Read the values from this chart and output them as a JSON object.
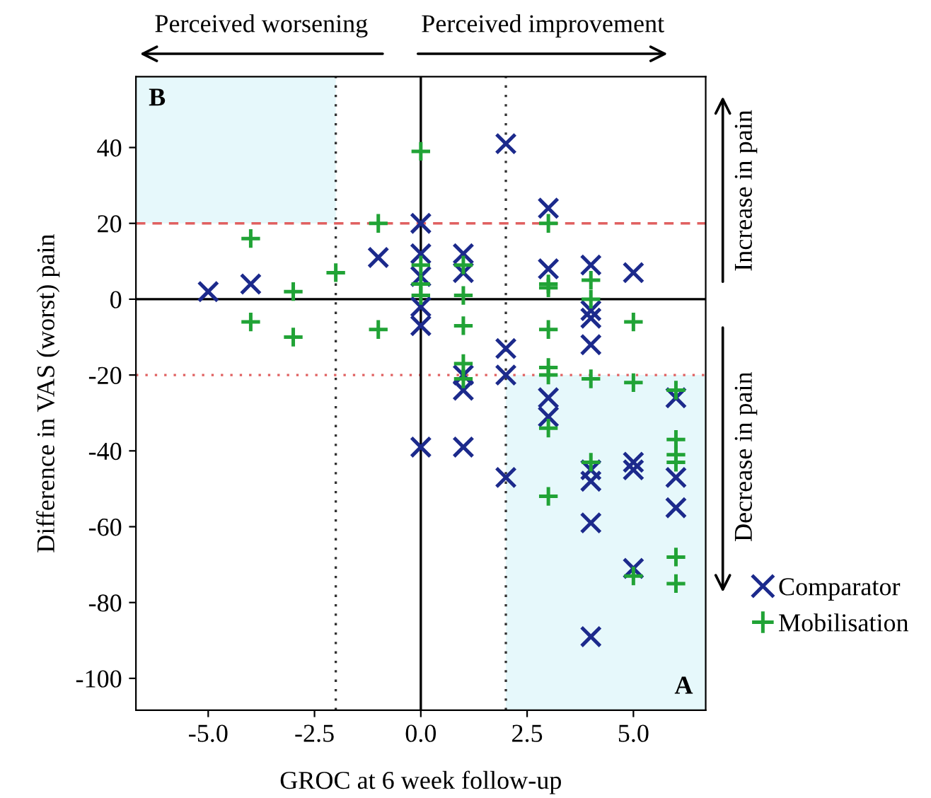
{
  "chart_data": {
    "type": "scatter",
    "xlabel": "GROC at 6 week follow-up",
    "ylabel": "Difference in VAS (worst) pain",
    "xlim": [
      -6.7,
      6.7
    ],
    "ylim": [
      -108.4,
      58.7
    ],
    "xticks": [
      {
        "value": -5,
        "label": "-5.0"
      },
      {
        "value": -2.5,
        "label": "-2.5"
      },
      {
        "value": 0,
        "label": "0.0"
      },
      {
        "value": 2.5,
        "label": "2.5"
      },
      {
        "value": 5,
        "label": "5.0"
      }
    ],
    "yticks": [
      -100,
      -80,
      -60,
      -40,
      -20,
      0,
      20,
      40
    ],
    "grid": false,
    "legend": "bottom right",
    "series": [
      {
        "name": "Comparator",
        "color": "#1c2a8c",
        "marker": "cross",
        "x": [
          -5,
          -4,
          -1,
          0,
          0,
          0,
          0,
          0,
          0,
          1,
          1,
          1,
          1,
          1,
          2,
          2,
          2,
          2,
          3,
          3,
          3,
          3,
          4,
          4,
          4,
          4,
          4,
          4,
          4,
          4,
          5,
          5,
          5,
          5,
          6,
          6,
          6
        ],
        "values": [
          2,
          4,
          11,
          20,
          12,
          6,
          -2,
          -7,
          -39,
          12,
          7,
          -20,
          -24,
          -39,
          41,
          -13,
          -20,
          -47,
          24,
          8,
          -26,
          -31,
          9,
          -3,
          -5,
          -12,
          -45,
          -48,
          -59,
          -89,
          7,
          -43,
          -45,
          -71,
          -26,
          -47,
          -55
        ]
      },
      {
        "name": "Mobilisation",
        "color": "#21a336",
        "marker": "plus",
        "x": [
          -4,
          -4,
          -3,
          -3,
          -2,
          -1,
          -1,
          0,
          0,
          0,
          0,
          1,
          1,
          1,
          1,
          1,
          3,
          3,
          3,
          3,
          3,
          3,
          3,
          3,
          4,
          4,
          4,
          4,
          5,
          5,
          5,
          6,
          6,
          6,
          6,
          6,
          6
        ],
        "values": [
          16,
          -6,
          2,
          -10,
          7,
          20,
          -8,
          39,
          9,
          4,
          1,
          9,
          1,
          -7,
          -17,
          -21,
          20,
          4,
          3,
          -8,
          -18,
          -20,
          -34,
          -52,
          5,
          0,
          -21,
          -43,
          -6,
          -22,
          -73,
          -24,
          -37,
          -41,
          -43,
          -68,
          -75
        ]
      }
    ],
    "ref_lines": [
      {
        "axis": "y",
        "value": 20,
        "color": "#e06060",
        "line_style": "dashed"
      },
      {
        "axis": "y",
        "value": -20,
        "color": "#e06060",
        "line_style": "dotted"
      },
      {
        "axis": "x",
        "value": -2,
        "color": "#333333",
        "line_style": "dotted"
      },
      {
        "axis": "x",
        "value": 2,
        "color": "#333333",
        "line_style": "dotted"
      },
      {
        "axis": "x",
        "value": 0,
        "color": "#000000",
        "line_style": "solid"
      },
      {
        "axis": "y",
        "value": 0,
        "color": "#000000",
        "line_style": "solid"
      }
    ],
    "bands": [
      {
        "axis": "x",
        "from": -6.7,
        "to": -2,
        "label": "B",
        "color": "#e6f8fb"
      },
      {
        "axis": "x",
        "from": 2,
        "to": 6.7,
        "label": "A",
        "color": "#e6f8fb"
      }
    ],
    "annotations": [
      "Perceived worsening",
      "Perceived improvement",
      "Increase in pain",
      "Decrease in pain"
    ]
  }
}
